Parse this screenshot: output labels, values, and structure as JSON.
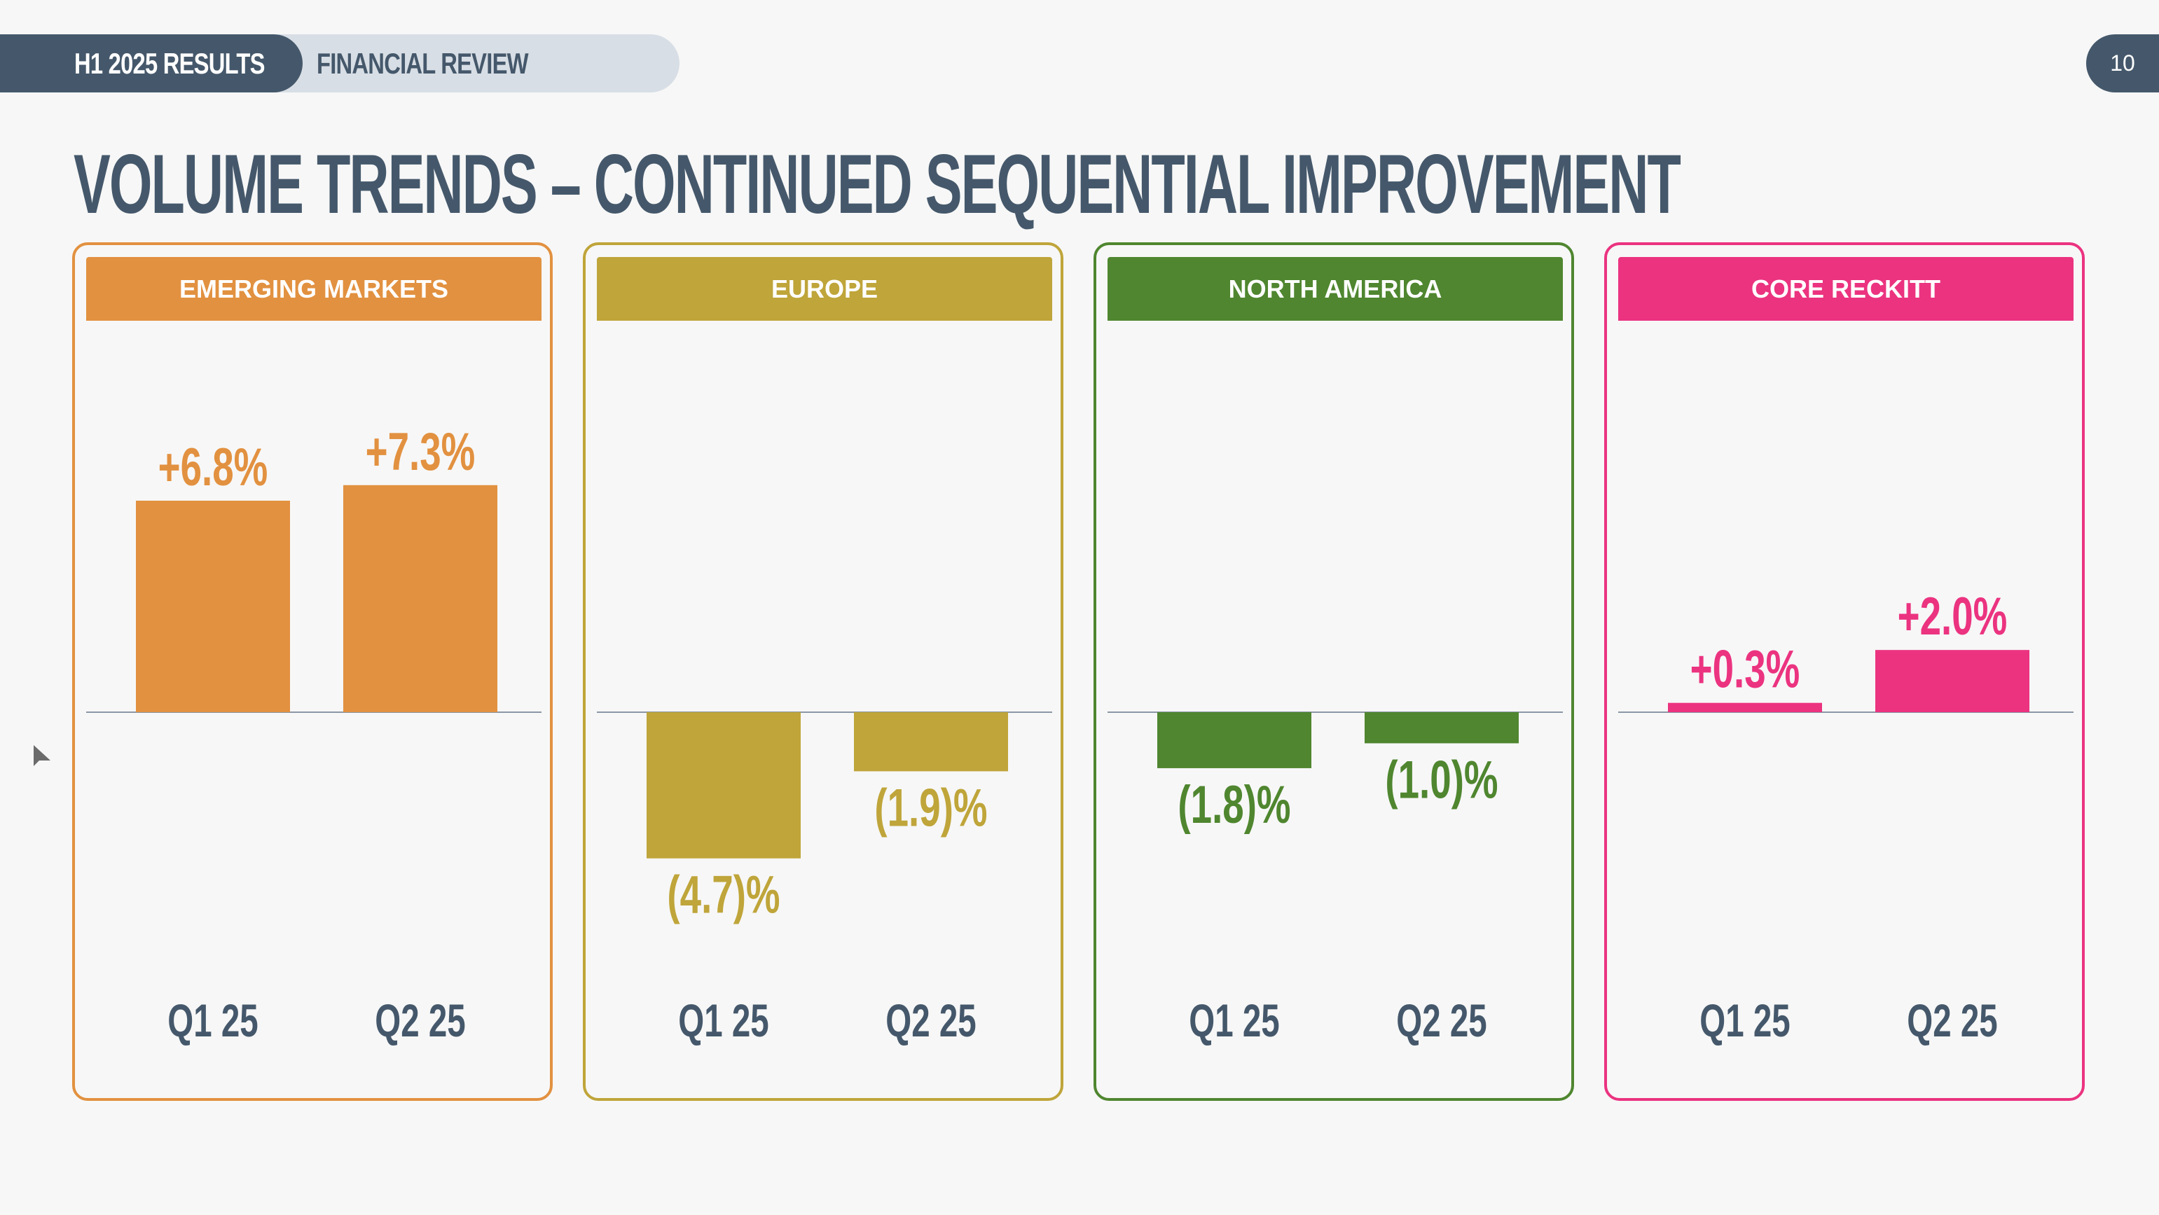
{
  "header": {
    "crumb_primary": "H1 2025 RESULTS",
    "crumb_secondary": "FINANCIAL REVIEW",
    "page_number": "10"
  },
  "title": "VOLUME TRENDS – CONTINUED SEQUENTIAL IMPROVEMENT",
  "colors": {
    "navy": "#45586b",
    "emerging_markets": "#e29140",
    "europe": "#bfa53a",
    "north_america": "#4f862f",
    "core_reckitt": "#eb3380"
  },
  "chart_data": [
    {
      "type": "bar",
      "title": "EMERGING MARKETS",
      "categories": [
        "Q1 25",
        "Q2 25"
      ],
      "values": [
        6.8,
        7.3
      ],
      "labels": [
        "+6.8%",
        "+7.3%"
      ],
      "color": "#e29140",
      "ylim": [
        -7.3,
        7.7
      ]
    },
    {
      "type": "bar",
      "title": "EUROPE",
      "categories": [
        "Q1 25",
        "Q2 25"
      ],
      "values": [
        -4.7,
        -1.9
      ],
      "labels": [
        "(4.7)%",
        "(1.9)%"
      ],
      "color": "#bfa53a",
      "ylim": [
        -7.3,
        7.7
      ]
    },
    {
      "type": "bar",
      "title": "NORTH AMERICA",
      "categories": [
        "Q1 25",
        "Q2 25"
      ],
      "values": [
        -1.8,
        -1.0
      ],
      "labels": [
        "(1.8)%",
        "(1.0)%"
      ],
      "color": "#4f862f",
      "ylim": [
        -7.3,
        7.7
      ]
    },
    {
      "type": "bar",
      "title": "CORE RECKITT",
      "categories": [
        "Q1 25",
        "Q2 25"
      ],
      "values": [
        0.3,
        2.0
      ],
      "labels": [
        "+0.3%",
        "+2.0%"
      ],
      "color": "#eb3380",
      "ylim": [
        -7.3,
        7.7
      ]
    }
  ]
}
